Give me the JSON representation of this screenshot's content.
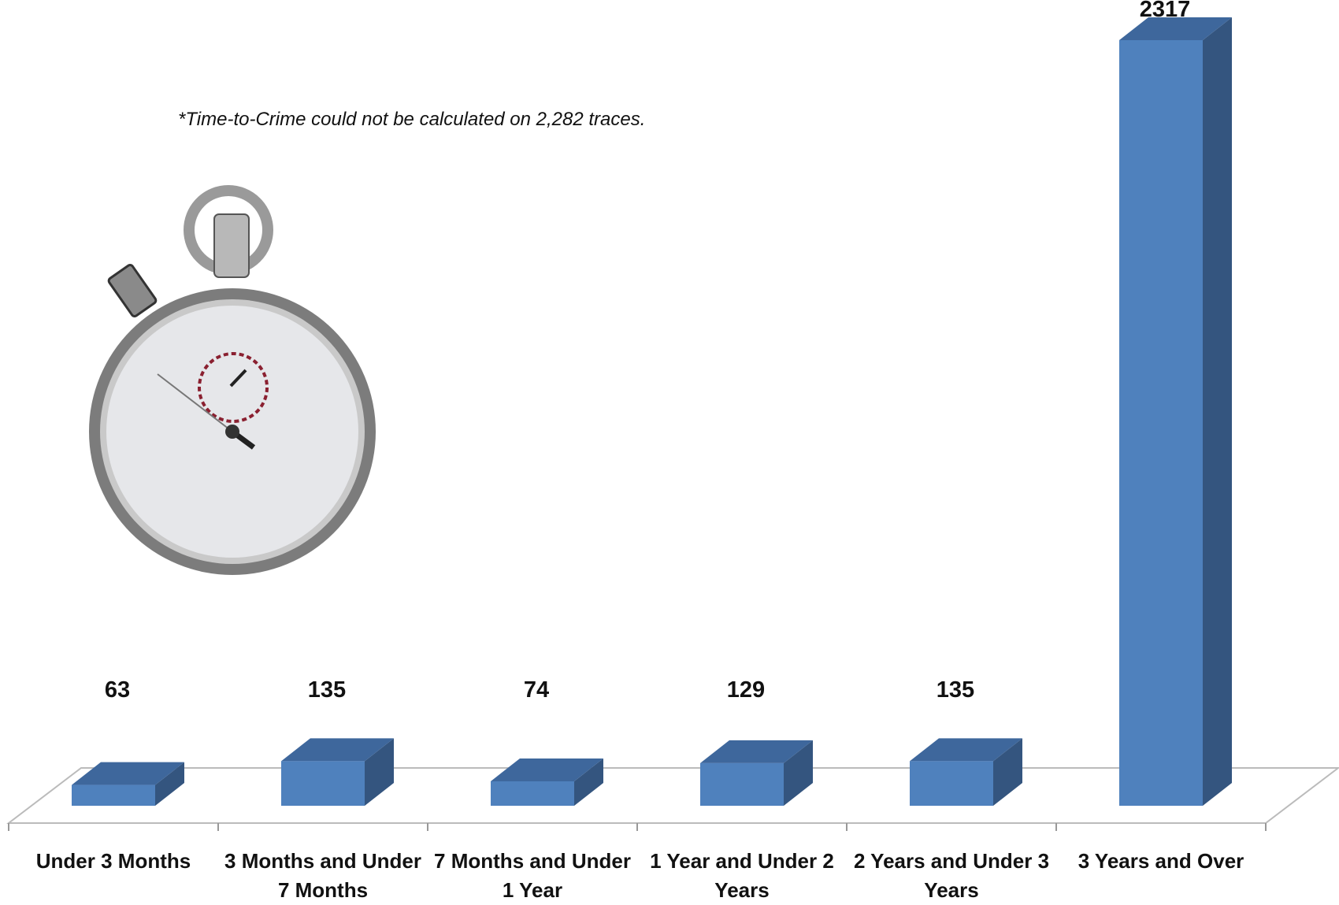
{
  "chart_data": {
    "type": "bar3d",
    "note": "*Time-to-Crime could not be calculated on 2,282 traces.",
    "categories": [
      "Under 3 Months",
      "3 Months and Under 7 Months",
      "7 Months and Under 1 Year",
      "1 Year and Under 2 Years",
      "2 Years and Under 3 Years",
      "3 Years and Over"
    ],
    "values": [
      63,
      135,
      74,
      129,
      135,
      2317
    ],
    "color": "#4f81bd"
  }
}
